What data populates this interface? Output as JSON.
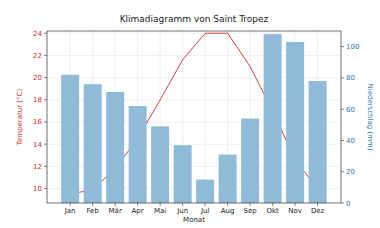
{
  "chart_data": {
    "type": "bar_line",
    "title": "Klimadiagramm von Saint Tropez",
    "xlabel": "Monat",
    "ylabel": "Temperatur (°C)",
    "y2label": "Niederschlag (mm)",
    "categories": [
      "Jan",
      "Feb",
      "Mär",
      "Apr",
      "Mai",
      "Jun",
      "Jul",
      "Aug",
      "Sep",
      "Okt",
      "Nov",
      "Dez"
    ],
    "series": [
      {
        "type": "line",
        "color": "#d62728",
        "axis": "y",
        "values": [
          9.5,
          9.9,
          11.8,
          14.5,
          18,
          21.6,
          24,
          24,
          21,
          17,
          12.6,
          10
        ]
      },
      {
        "type": "bar",
        "color": "#8fbbd9",
        "axis": "y2",
        "values": [
          82,
          76,
          71,
          62,
          49,
          37,
          15,
          31,
          54,
          108,
          103,
          78
        ]
      }
    ],
    "ylim": [
      8.7,
      24.2
    ],
    "yticks": [
      10,
      12,
      14,
      16,
      18,
      20,
      22,
      24
    ],
    "y2lim": [
      0,
      110
    ],
    "y2ticks": [
      0,
      20,
      40,
      60,
      80,
      100
    ],
    "grid": true
  }
}
